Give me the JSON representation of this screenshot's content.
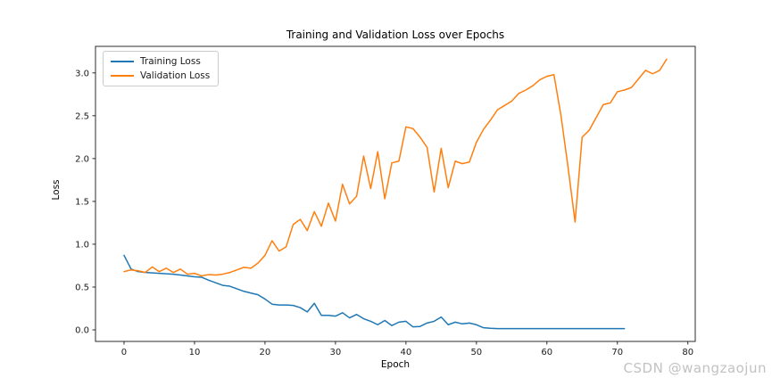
{
  "watermark": {
    "text": "CSDN @wangzaojun"
  },
  "chart_data": {
    "type": "line",
    "title": "Training and Validation Loss over Epochs",
    "xlabel": "Epoch",
    "ylabel": "Loss",
    "xlim": [
      -4.05,
      81.05
    ],
    "ylim": [
      -0.135,
      3.31
    ],
    "x_ticks": [
      0,
      10,
      20,
      30,
      40,
      50,
      60,
      70,
      80
    ],
    "x_tick_labels": [
      "0",
      "10",
      "20",
      "30",
      "40",
      "50",
      "60",
      "70",
      "80"
    ],
    "y_ticks": [
      0.0,
      0.5,
      1.0,
      1.5,
      2.0,
      2.5,
      3.0
    ],
    "y_tick_labels": [
      "0.0",
      "0.5",
      "1.0",
      "1.5",
      "2.0",
      "2.5",
      "3.0"
    ],
    "grid": false,
    "legend_position": "upper left",
    "series": [
      {
        "name": "Training Loss",
        "color": "#1f77b4",
        "x_start": 0,
        "x_step": 1,
        "values": [
          0.87,
          0.71,
          0.68,
          0.67,
          0.665,
          0.66,
          0.655,
          0.65,
          0.64,
          0.63,
          0.62,
          0.615,
          0.58,
          0.55,
          0.52,
          0.51,
          0.48,
          0.45,
          0.43,
          0.41,
          0.36,
          0.3,
          0.29,
          0.29,
          0.285,
          0.26,
          0.21,
          0.31,
          0.17,
          0.17,
          0.16,
          0.2,
          0.14,
          0.18,
          0.13,
          0.1,
          0.06,
          0.11,
          0.05,
          0.09,
          0.1,
          0.035,
          0.04,
          0.08,
          0.1,
          0.15,
          0.06,
          0.09,
          0.07,
          0.08,
          0.06,
          0.025,
          0.018,
          0.015,
          0.015,
          0.015,
          0.015,
          0.015,
          0.015,
          0.015,
          0.015,
          0.015,
          0.015,
          0.015,
          0.015,
          0.015,
          0.015,
          0.015,
          0.015,
          0.015,
          0.015,
          0.015
        ]
      },
      {
        "name": "Validation Loss",
        "color": "#ff7f0e",
        "x_start": 0,
        "x_step": 1,
        "values": [
          0.68,
          0.7,
          0.69,
          0.67,
          0.735,
          0.68,
          0.72,
          0.67,
          0.71,
          0.65,
          0.66,
          0.63,
          0.645,
          0.64,
          0.65,
          0.67,
          0.7,
          0.73,
          0.72,
          0.78,
          0.87,
          1.04,
          0.92,
          0.97,
          1.23,
          1.29,
          1.16,
          1.38,
          1.21,
          1.48,
          1.27,
          1.7,
          1.47,
          1.56,
          2.03,
          1.65,
          2.08,
          1.53,
          1.95,
          1.97,
          2.37,
          2.35,
          2.25,
          2.13,
          1.61,
          2.12,
          1.66,
          1.97,
          1.94,
          1.96,
          2.19,
          2.34,
          2.45,
          2.57,
          2.62,
          2.67,
          2.76,
          2.8,
          2.85,
          2.92,
          2.96,
          2.98,
          2.5,
          1.9,
          1.26,
          2.25,
          2.33,
          2.48,
          2.63,
          2.65,
          2.78,
          2.8,
          2.83,
          2.93,
          3.03,
          2.99,
          3.03,
          3.16
        ]
      }
    ]
  }
}
